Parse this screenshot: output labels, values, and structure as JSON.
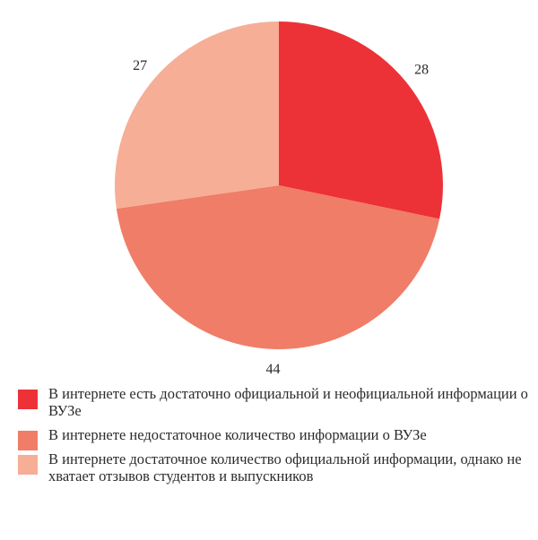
{
  "chart_data": {
    "type": "pie",
    "title": "",
    "slices": [
      {
        "label": "В интернете есть достаточно официальной и неофициальной информации о ВУЗе",
        "value": 28,
        "data_label": "28",
        "color": "#ec3237"
      },
      {
        "label": "В интернете недостаточное количество информации о ВУЗе",
        "value": 44,
        "data_label": "44",
        "color": "#f07d67"
      },
      {
        "label": "В интернете достаточное количество официальной информации, однако не хватает отзывов студентов и выпускников",
        "value": 27,
        "data_label": "27",
        "color": "#f6ae97"
      }
    ],
    "start": "12 o'clock",
    "direction": "clockwise",
    "legend_position": "bottom"
  }
}
